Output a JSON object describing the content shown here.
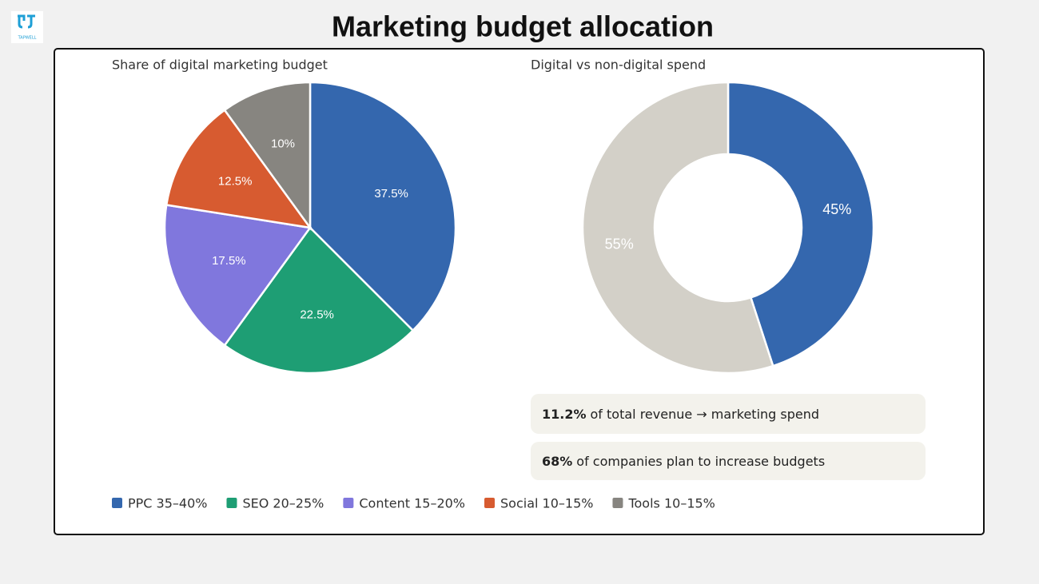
{
  "logo": "TAPWELL",
  "title": "Marketing budget allocation",
  "chart_data": [
    {
      "type": "pie",
      "title": "Share of digital marketing budget",
      "categories": [
        "PPC 35–40%",
        "SEO 20–25%",
        "Content 15–20%",
        "Social 10–15%",
        "Tools 10–15%"
      ],
      "values": [
        37.5,
        22.5,
        17.5,
        12.5,
        10
      ],
      "value_labels": [
        "37.5%",
        "22.5%",
        "17.5%",
        "12.5%",
        "10%"
      ],
      "colors": [
        "#3467ae",
        "#1e9e74",
        "#8077dd",
        "#d75b30",
        "#878580"
      ],
      "legend": "bottom-left"
    },
    {
      "type": "donut",
      "title": "Digital vs non-digital spend",
      "values": [
        45,
        55
      ],
      "value_labels": [
        "45%",
        "55%"
      ],
      "colors": [
        "#3467ae",
        "#d3d0c8"
      ]
    }
  ],
  "stats": [
    {
      "value": "11.2%",
      "text": "of total revenue → marketing spend"
    },
    {
      "value": "68%",
      "text": "of companies plan to increase budgets"
    }
  ]
}
